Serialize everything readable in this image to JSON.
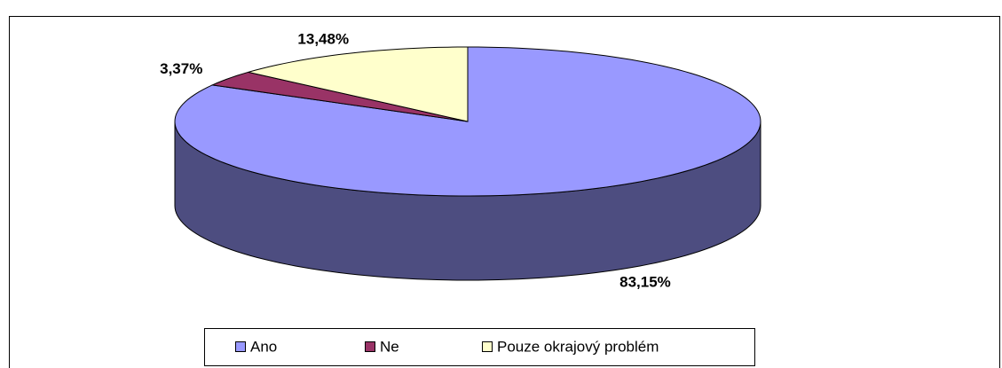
{
  "chart_data": {
    "type": "pie3d",
    "categories": [
      "Ano",
      "Ne",
      "Pouze okrajový problém"
    ],
    "series": [
      {
        "values": [
          83.15,
          3.37,
          13.48
        ],
        "value_labels": [
          "83,15%",
          "3,37%",
          "13,48%"
        ]
      }
    ],
    "colors": [
      "#9999ff",
      "#993366",
      "#ffffcc"
    ],
    "legend": "bottom"
  }
}
